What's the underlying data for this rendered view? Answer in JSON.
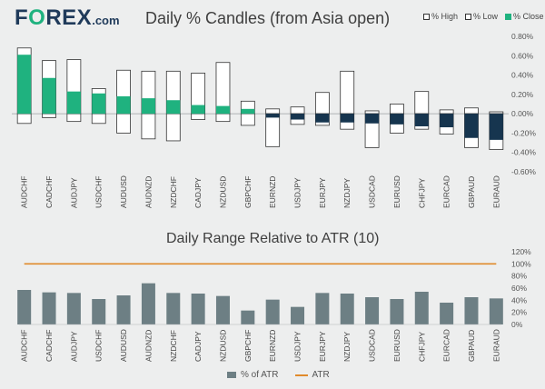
{
  "brand": {
    "main": "FOREX",
    "suffix": ".com"
  },
  "colors": {
    "green": "#1fb27f",
    "navy": "#16354f",
    "bar_gray": "#6d7f84",
    "atr_orange": "#e08a2b",
    "background": "#edeeee"
  },
  "chart_data": [
    {
      "type": "candlestick",
      "title": "Daily % Candles (from Asia open)",
      "legend": {
        "high": "% High",
        "low": "% Low",
        "close": "% Close"
      },
      "ylim": [
        -0.6,
        0.8
      ],
      "yticks": [
        0.8,
        0.6,
        0.4,
        0.2,
        0.0,
        -0.2,
        -0.4,
        -0.6
      ],
      "ytick_labels": [
        "0.80%",
        "0.60%",
        "0.40%",
        "0.20%",
        "0.00%",
        "-0.20%",
        "-0.40%",
        "-0.60%"
      ],
      "categories": [
        "AUDCHF",
        "CADCHF",
        "AUDJPY",
        "USDCHF",
        "AUDUSD",
        "AUDNZD",
        "NZDCHF",
        "CADJPY",
        "NZDUSD",
        "GBPCHF",
        "EURNZD",
        "USDJPY",
        "EURJPY",
        "NZDJPY",
        "USDCAD",
        "EURUSD",
        "CHFJPY",
        "EURCAD",
        "GBPAUD",
        "EURAUD"
      ],
      "high": [
        0.68,
        0.55,
        0.56,
        0.26,
        0.45,
        0.44,
        0.44,
        0.42,
        0.53,
        0.13,
        0.05,
        0.07,
        0.22,
        0.44,
        0.03,
        0.1,
        0.23,
        0.04,
        0.06,
        0.02
      ],
      "low": [
        -0.1,
        -0.04,
        -0.08,
        -0.1,
        -0.2,
        -0.26,
        -0.28,
        -0.06,
        -0.08,
        -0.12,
        -0.34,
        -0.11,
        -0.12,
        -0.16,
        -0.35,
        -0.2,
        -0.16,
        -0.21,
        -0.35,
        -0.37
      ],
      "close": [
        0.61,
        0.37,
        0.23,
        0.21,
        0.18,
        0.16,
        0.14,
        0.09,
        0.08,
        0.05,
        -0.04,
        -0.06,
        -0.09,
        -0.09,
        -0.1,
        -0.11,
        -0.13,
        -0.14,
        -0.25,
        -0.27
      ]
    },
    {
      "type": "bar",
      "title": "Daily Range Relative to ATR (10)",
      "legend": {
        "bars": "% of ATR",
        "line": "ATR"
      },
      "ylim": [
        0,
        120
      ],
      "yticks": [
        0,
        20,
        40,
        60,
        80,
        100,
        120
      ],
      "ytick_labels": [
        "0%",
        "20%",
        "40%",
        "60%",
        "80%",
        "100%",
        "120%"
      ],
      "categories": [
        "AUDCHF",
        "CADCHF",
        "AUDJPY",
        "USDCHF",
        "AUDUSD",
        "AUDNZD",
        "NZDCHF",
        "CADJPY",
        "NZDUSD",
        "GBPCHF",
        "EURNZD",
        "USDJPY",
        "EURJPY",
        "NZDJPY",
        "USDCAD",
        "EURUSD",
        "CHFJPY",
        "EURCAD",
        "GBPAUD",
        "EURAUD"
      ],
      "values": [
        57,
        53,
        52,
        42,
        48,
        68,
        52,
        51,
        47,
        23,
        41,
        29,
        52,
        51,
        45,
        42,
        54,
        36,
        45,
        43
      ],
      "atr_line": 100
    }
  ]
}
